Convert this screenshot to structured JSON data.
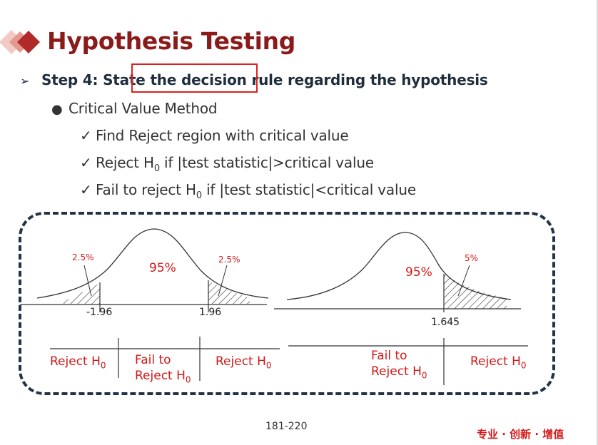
{
  "title": "Hypothesis Testing",
  "step": {
    "before": "Step 4: State",
    "highlighted": "the decision rule",
    "after": "regarding the hypothesis"
  },
  "method": "Critical Value Method",
  "checks": [
    {
      "text": "Find Reject region with critical value"
    },
    {
      "pre": "Reject H",
      "sub": "0",
      "post": " if |test statistic|>critical value"
    },
    {
      "pre": "Fail to reject H",
      "sub": "0",
      "post": " if |test statistic|<critical value"
    }
  ],
  "two_tailed": {
    "left_tail": "2.5%",
    "center": "95%",
    "right_tail": "2.5%",
    "left_critical": "-1.96",
    "right_critical": "1.96",
    "regions": [
      {
        "pre": "Reject H",
        "sub": "0"
      },
      {
        "line1": "Fail to",
        "pre": "Reject H",
        "sub": "0"
      },
      {
        "pre": "Reject H",
        "sub": "0"
      }
    ]
  },
  "one_tailed": {
    "center": "95%",
    "right_tail": "5%",
    "critical": "1.645",
    "regions": [
      {
        "line1": "Fail to",
        "pre": "Reject H",
        "sub": "0"
      },
      {
        "pre": "Reject H",
        "sub": "0"
      }
    ]
  },
  "page_number": "181-220",
  "footer_tag": "专业 · 创新 · 增值",
  "colors": {
    "title": "#8b1a1a",
    "accent_red": "#d21919",
    "frame": "#223349",
    "logo_dark": "#b02a2a",
    "logo_light": "#f2c9c4"
  },
  "icons": {
    "logo": "diamond-logo-icon",
    "step_bullet": "arrowhead-icon",
    "method_bullet": "dot-icon",
    "check": "check-icon"
  }
}
